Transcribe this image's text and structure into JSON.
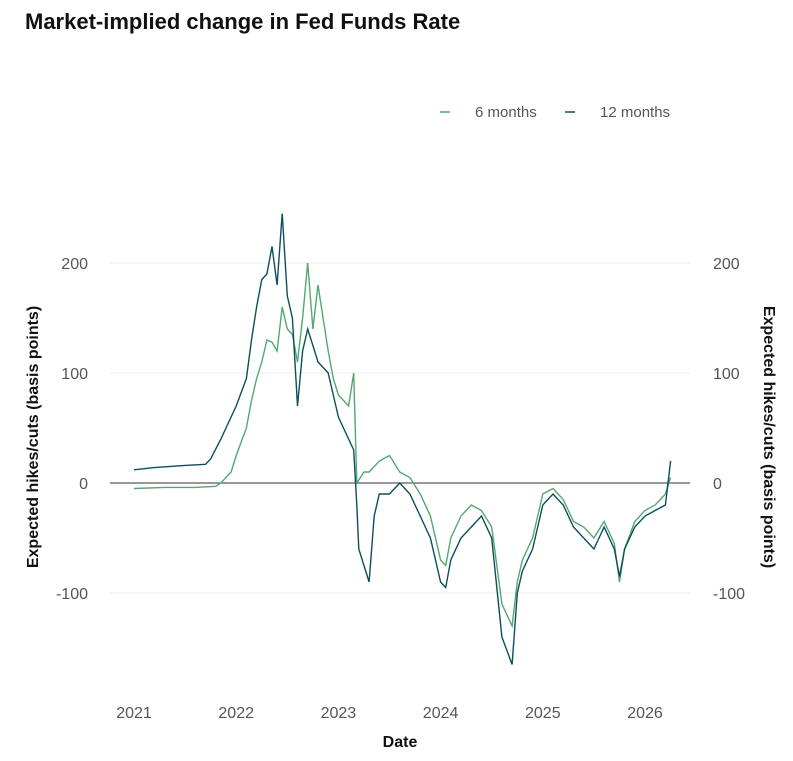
{
  "chart_data": {
    "type": "line",
    "title": "Market-implied change in Fed Funds Rate",
    "xlabel": "Date",
    "ylabel": "Expected hikes/cuts (basis points)",
    "ylabel_right": "Expected hikes/cuts (basis points)",
    "xlim": [
      2020.77,
      2026.45
    ],
    "ylim": [
      -187,
      200
    ],
    "x_ticks": [
      2021,
      2022,
      2023,
      2024,
      2025,
      2026
    ],
    "x_tick_labels": [
      "2021",
      "2022",
      "2023",
      "2024",
      "2025",
      "2026"
    ],
    "y_ticks": [
      -100,
      0,
      100,
      200
    ],
    "y_tick_labels": [
      "-100",
      "0",
      "100",
      "200"
    ],
    "grid": true,
    "legend_position": "top-right",
    "series": [
      {
        "name": "6 months",
        "color": "#52a870",
        "points": [
          [
            2021.0,
            -5
          ],
          [
            2021.3,
            -4
          ],
          [
            2021.6,
            -4
          ],
          [
            2021.8,
            -3
          ],
          [
            2021.85,
            0
          ],
          [
            2021.95,
            10
          ],
          [
            2022.0,
            25
          ],
          [
            2022.1,
            50
          ],
          [
            2022.15,
            75
          ],
          [
            2022.2,
            95
          ],
          [
            2022.25,
            110
          ],
          [
            2022.3,
            130
          ],
          [
            2022.35,
            128
          ],
          [
            2022.4,
            120
          ],
          [
            2022.45,
            160
          ],
          [
            2022.5,
            140
          ],
          [
            2022.55,
            135
          ],
          [
            2022.6,
            110
          ],
          [
            2022.65,
            150
          ],
          [
            2022.7,
            200
          ],
          [
            2022.75,
            140
          ],
          [
            2022.8,
            180
          ],
          [
            2022.85,
            150
          ],
          [
            2022.9,
            120
          ],
          [
            2022.95,
            95
          ],
          [
            2023.0,
            80
          ],
          [
            2023.1,
            70
          ],
          [
            2023.15,
            100
          ],
          [
            2023.18,
            0
          ],
          [
            2023.25,
            10
          ],
          [
            2023.3,
            10
          ],
          [
            2023.4,
            20
          ],
          [
            2023.5,
            25
          ],
          [
            2023.6,
            10
          ],
          [
            2023.7,
            5
          ],
          [
            2023.8,
            -10
          ],
          [
            2023.9,
            -30
          ],
          [
            2024.0,
            -70
          ],
          [
            2024.05,
            -75
          ],
          [
            2024.1,
            -50
          ],
          [
            2024.2,
            -30
          ],
          [
            2024.3,
            -20
          ],
          [
            2024.4,
            -25
          ],
          [
            2024.5,
            -40
          ],
          [
            2024.6,
            -110
          ],
          [
            2024.7,
            -130
          ],
          [
            2024.75,
            -90
          ],
          [
            2024.8,
            -70
          ],
          [
            2024.9,
            -50
          ],
          [
            2025.0,
            -10
          ],
          [
            2025.1,
            -5
          ],
          [
            2025.2,
            -15
          ],
          [
            2025.3,
            -35
          ],
          [
            2025.4,
            -40
          ],
          [
            2025.5,
            -50
          ],
          [
            2025.6,
            -35
          ],
          [
            2025.7,
            -55
          ],
          [
            2025.75,
            -90
          ],
          [
            2025.8,
            -60
          ],
          [
            2025.9,
            -35
          ],
          [
            2026.0,
            -25
          ],
          [
            2026.1,
            -20
          ],
          [
            2026.2,
            -10
          ],
          [
            2026.25,
            5
          ]
        ]
      },
      {
        "name": "12 months",
        "color": "#0b4f5c",
        "points": [
          [
            2021.0,
            12
          ],
          [
            2021.2,
            14
          ],
          [
            2021.5,
            16
          ],
          [
            2021.7,
            17
          ],
          [
            2021.75,
            22
          ],
          [
            2021.85,
            40
          ],
          [
            2022.0,
            70
          ],
          [
            2022.1,
            95
          ],
          [
            2022.15,
            130
          ],
          [
            2022.2,
            160
          ],
          [
            2022.25,
            185
          ],
          [
            2022.3,
            190
          ],
          [
            2022.35,
            215
          ],
          [
            2022.4,
            180
          ],
          [
            2022.45,
            245
          ],
          [
            2022.5,
            170
          ],
          [
            2022.55,
            150
          ],
          [
            2022.6,
            70
          ],
          [
            2022.65,
            120
          ],
          [
            2022.7,
            140
          ],
          [
            2022.75,
            125
          ],
          [
            2022.8,
            110
          ],
          [
            2022.9,
            100
          ],
          [
            2023.0,
            60
          ],
          [
            2023.1,
            40
          ],
          [
            2023.15,
            30
          ],
          [
            2023.18,
            -20
          ],
          [
            2023.2,
            -60
          ],
          [
            2023.3,
            -90
          ],
          [
            2023.35,
            -30
          ],
          [
            2023.4,
            -10
          ],
          [
            2023.5,
            -10
          ],
          [
            2023.6,
            0
          ],
          [
            2023.7,
            -10
          ],
          [
            2023.8,
            -30
          ],
          [
            2023.9,
            -50
          ],
          [
            2024.0,
            -90
          ],
          [
            2024.05,
            -95
          ],
          [
            2024.1,
            -70
          ],
          [
            2024.2,
            -50
          ],
          [
            2024.3,
            -40
          ],
          [
            2024.4,
            -30
          ],
          [
            2024.5,
            -50
          ],
          [
            2024.6,
            -140
          ],
          [
            2024.7,
            -165
          ],
          [
            2024.75,
            -100
          ],
          [
            2024.8,
            -80
          ],
          [
            2024.9,
            -60
          ],
          [
            2025.0,
            -20
          ],
          [
            2025.1,
            -10
          ],
          [
            2025.2,
            -20
          ],
          [
            2025.3,
            -40
          ],
          [
            2025.4,
            -50
          ],
          [
            2025.5,
            -60
          ],
          [
            2025.6,
            -40
          ],
          [
            2025.7,
            -60
          ],
          [
            2025.75,
            -85
          ],
          [
            2025.8,
            -60
          ],
          [
            2025.9,
            -40
          ],
          [
            2026.0,
            -30
          ],
          [
            2026.1,
            -25
          ],
          [
            2026.2,
            -20
          ],
          [
            2026.25,
            20
          ]
        ]
      }
    ]
  }
}
